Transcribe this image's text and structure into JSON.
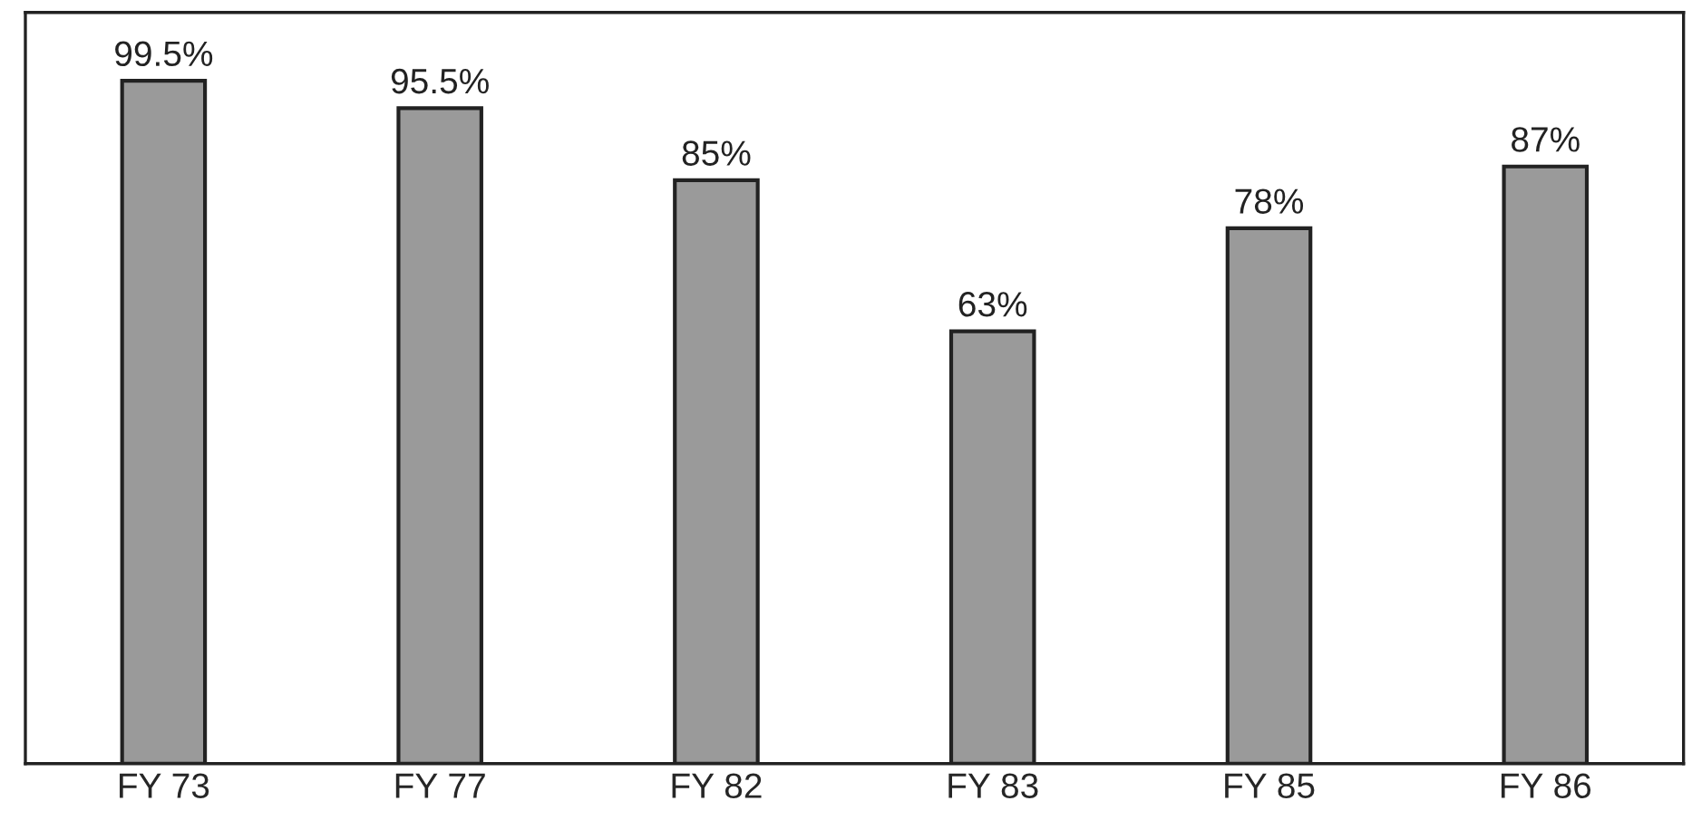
{
  "chart_data": {
    "type": "bar",
    "categories": [
      "FY 73",
      "FY 77",
      "FY 82",
      "FY 83",
      "FY 85",
      "FY 86"
    ],
    "values": [
      99.5,
      95.5,
      85,
      63,
      78,
      87
    ],
    "value_labels": [
      "99.5%",
      "95.5%",
      "85%",
      "63%",
      "78%",
      "87%"
    ],
    "color": "#9a9a9a",
    "tick_labels": "x",
    "grid": false,
    "legend": false
  }
}
